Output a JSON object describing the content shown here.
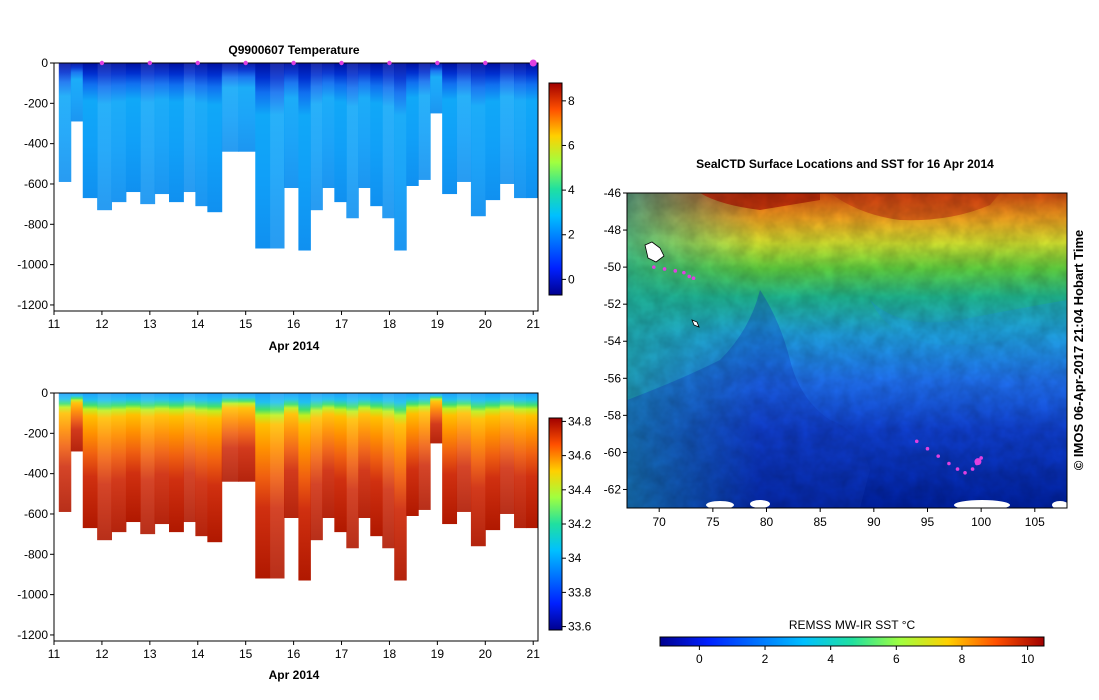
{
  "chart_data": [
    {
      "type": "heatmap",
      "title": "Q9900607  Temperature",
      "xlabel": "Apr 2014",
      "ylabel": "",
      "x_ticks": [
        "11",
        "12",
        "13",
        "14",
        "15",
        "16",
        "17",
        "18",
        "19",
        "20",
        "21"
      ],
      "xlim": [
        11,
        21.1
      ],
      "y_ticks": [
        "0",
        "-200",
        "-400",
        "-600",
        "-800",
        "-1000",
        "-1200"
      ],
      "ylim": [
        -1230,
        0
      ],
      "colorbar": {
        "ticks": [
          "0",
          "2",
          "4",
          "6",
          "8"
        ],
        "range": [
          -0.7,
          8.8
        ]
      },
      "profile_markers": [
        12,
        13,
        14,
        15,
        16,
        17,
        18,
        19,
        20,
        21
      ],
      "profiles": {
        "times": [
          11.1,
          11.35,
          11.6,
          11.9,
          12.2,
          12.5,
          12.8,
          13.1,
          13.4,
          13.7,
          13.95,
          14.2,
          14.5,
          14.85,
          15.2,
          15.5,
          15.8,
          16.1,
          16.35,
          16.6,
          16.85,
          17.1,
          17.35,
          17.6,
          17.85,
          18.1,
          18.35,
          18.6,
          18.85,
          19.1,
          19.4,
          19.7,
          20.0,
          20.3,
          20.6,
          20.85
        ],
        "max_depth": [
          590,
          290,
          670,
          730,
          690,
          640,
          700,
          650,
          690,
          640,
          710,
          740,
          440,
          440,
          920,
          920,
          620,
          930,
          730,
          620,
          690,
          770,
          620,
          710,
          770,
          930,
          610,
          580,
          250,
          650,
          590,
          760,
          680,
          600,
          670,
          670
        ]
      }
    },
    {
      "type": "heatmap",
      "title": "",
      "xlabel": "Apr 2014",
      "ylabel": "",
      "x_ticks": [
        "11",
        "12",
        "13",
        "14",
        "15",
        "16",
        "17",
        "18",
        "19",
        "20",
        "21"
      ],
      "xlim": [
        11,
        21.1
      ],
      "y_ticks": [
        "0",
        "-200",
        "-400",
        "-600",
        "-800",
        "-1000",
        "-1200"
      ],
      "ylim": [
        -1230,
        0
      ],
      "colorbar": {
        "ticks": [
          "33.6",
          "33.8",
          "34",
          "34.2",
          "34.4",
          "34.6",
          "34.8"
        ],
        "range": [
          33.58,
          34.82
        ]
      }
    },
    {
      "type": "heatmap",
      "title": "SealCTD Surface Locations and SST for 16 Apr 2014",
      "xlabel": "",
      "ylabel": "",
      "x_ticks": [
        "70",
        "75",
        "80",
        "85",
        "90",
        "95",
        "100",
        "105"
      ],
      "xlim": [
        67,
        108
      ],
      "y_ticks": [
        "-46",
        "-48",
        "-50",
        "-52",
        "-54",
        "-56",
        "-58",
        "-60",
        "-62"
      ],
      "ylim": [
        -63,
        -46
      ],
      "colorbar": {
        "label": "REMSS MW-IR SST °C",
        "ticks": [
          "0",
          "2",
          "4",
          "6",
          "8",
          "10"
        ],
        "range": [
          -1.2,
          10.5
        ]
      },
      "track": [
        [
          69.5,
          -50
        ],
        [
          70.5,
          -50.1
        ],
        [
          71.5,
          -50.2
        ],
        [
          72.3,
          -50.3
        ],
        [
          72.8,
          -50.5
        ],
        [
          73.2,
          -50.6
        ],
        [
          94,
          -59.4
        ],
        [
          95,
          -59.8
        ],
        [
          96,
          -60.2
        ],
        [
          97,
          -60.6
        ],
        [
          97.8,
          -60.9
        ],
        [
          98.5,
          -61.1
        ],
        [
          99.2,
          -60.9
        ],
        [
          99.6,
          -60.6
        ],
        [
          100,
          -60.3
        ],
        [
          99.7,
          -60.5
        ]
      ],
      "credit": "©  IMOS 06-Apr-2017 21:04 Hobart Time"
    }
  ],
  "colors": {
    "magenta": "#e040e0",
    "white": "#ffffff"
  }
}
